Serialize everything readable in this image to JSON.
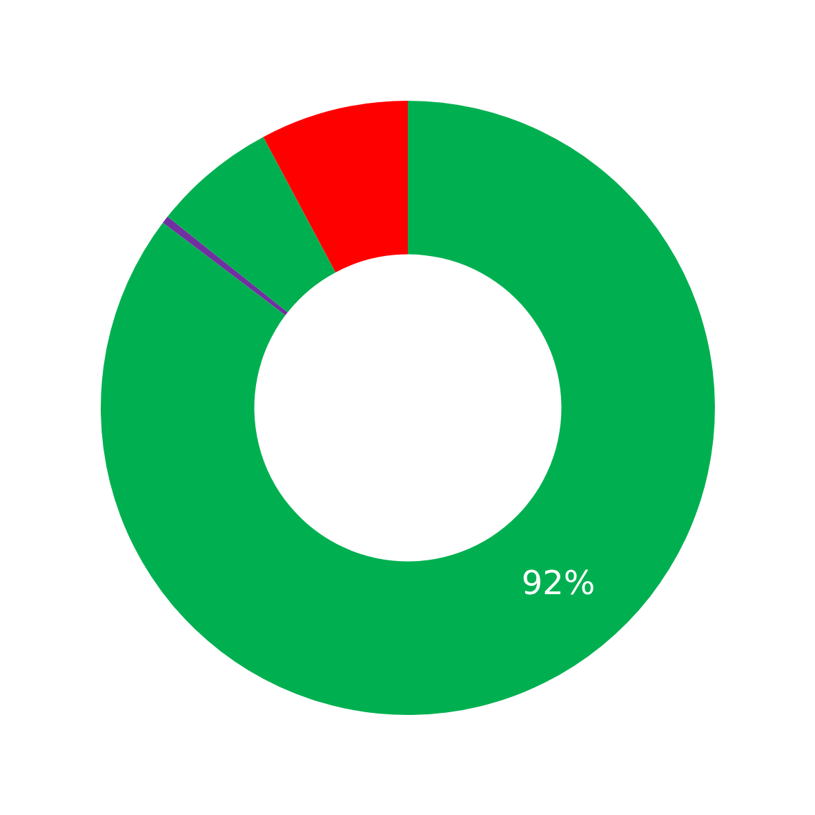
{
  "chart_data": {
    "type": "donut",
    "categories": [
      null,
      null,
      null,
      null
    ],
    "values": [
      85.3,
      0.4,
      6.5,
      7.8
    ],
    "colors": [
      "#00b050",
      "#7030a0",
      "#00b050",
      "#ff0000"
    ],
    "annotations": [
      "92%"
    ]
  }
}
